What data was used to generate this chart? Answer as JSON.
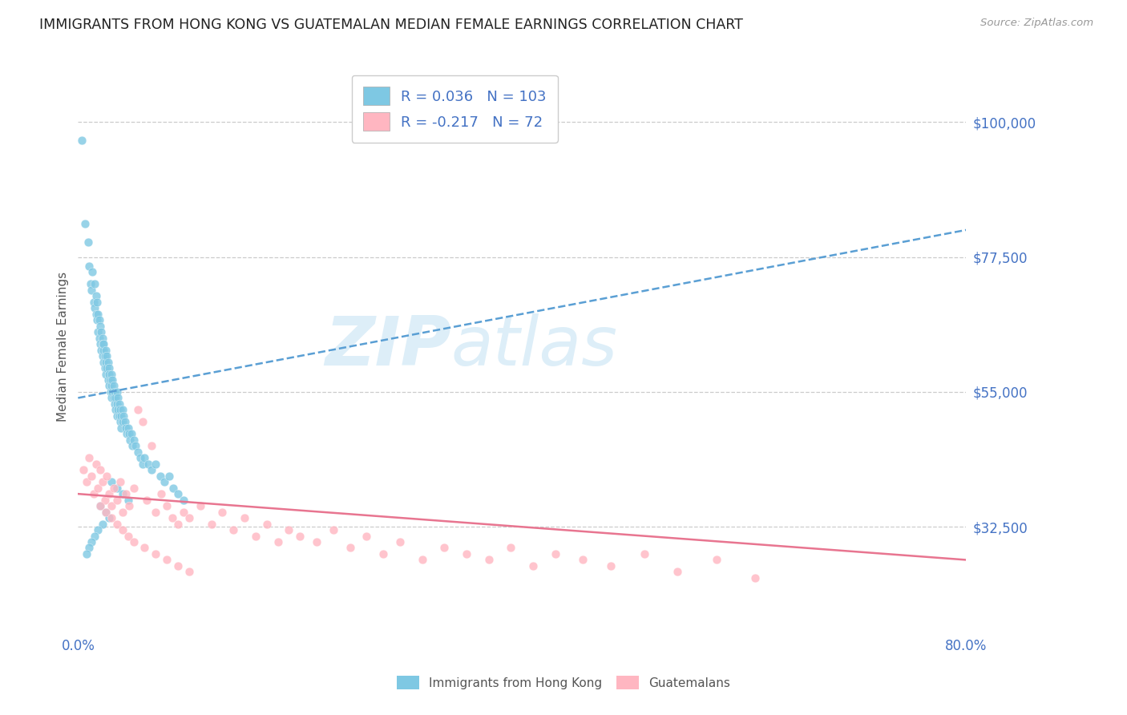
{
  "title": "IMMIGRANTS FROM HONG KONG VS GUATEMALAN MEDIAN FEMALE EARNINGS CORRELATION CHART",
  "source": "Source: ZipAtlas.com",
  "ylabel": "Median Female Earnings",
  "xlim": [
    0.0,
    0.8
  ],
  "ylim": [
    15000,
    110000
  ],
  "yticks": [
    32500,
    55000,
    77500,
    100000
  ],
  "ytick_labels": [
    "$32,500",
    "$55,000",
    "$77,500",
    "$100,000"
  ],
  "xticks": [
    0.0,
    0.1,
    0.2,
    0.3,
    0.4,
    0.5,
    0.6,
    0.7,
    0.8
  ],
  "xtick_labels": [
    "0.0%",
    "",
    "",
    "",
    "",
    "",
    "",
    "",
    "80.0%"
  ],
  "hk_R": 0.036,
  "hk_N": 103,
  "gt_R": -0.217,
  "gt_N": 72,
  "hk_color": "#7ec8e3",
  "gt_color": "#ffb6c1",
  "hk_line_color": "#5a9fd4",
  "gt_line_color": "#e87590",
  "background_color": "#ffffff",
  "watermark_color": "#ddeef8",
  "legend_label_hk": "Immigrants from Hong Kong",
  "legend_label_gt": "Guatemalans",
  "title_color": "#222222",
  "tick_color": "#4472c4",
  "hk_scatter_x": [
    0.003,
    0.006,
    0.009,
    0.01,
    0.011,
    0.012,
    0.013,
    0.014,
    0.015,
    0.015,
    0.016,
    0.016,
    0.017,
    0.017,
    0.018,
    0.018,
    0.019,
    0.019,
    0.02,
    0.02,
    0.021,
    0.021,
    0.022,
    0.022,
    0.022,
    0.023,
    0.023,
    0.023,
    0.024,
    0.024,
    0.025,
    0.025,
    0.025,
    0.026,
    0.026,
    0.027,
    0.027,
    0.028,
    0.028,
    0.028,
    0.029,
    0.029,
    0.03,
    0.03,
    0.03,
    0.031,
    0.031,
    0.032,
    0.032,
    0.033,
    0.033,
    0.034,
    0.034,
    0.035,
    0.035,
    0.035,
    0.036,
    0.036,
    0.037,
    0.037,
    0.038,
    0.038,
    0.039,
    0.039,
    0.04,
    0.04,
    0.041,
    0.042,
    0.043,
    0.044,
    0.045,
    0.046,
    0.047,
    0.048,
    0.049,
    0.05,
    0.052,
    0.054,
    0.056,
    0.058,
    0.06,
    0.063,
    0.066,
    0.07,
    0.074,
    0.078,
    0.082,
    0.086,
    0.09,
    0.095,
    0.03,
    0.035,
    0.04,
    0.045,
    0.02,
    0.025,
    0.028,
    0.022,
    0.018,
    0.015,
    0.012,
    0.01,
    0.008
  ],
  "hk_scatter_y": [
    97000,
    83000,
    80000,
    76000,
    73000,
    72000,
    75000,
    70000,
    73000,
    69000,
    71000,
    68000,
    70000,
    67000,
    68000,
    65000,
    67000,
    64000,
    66000,
    63000,
    65000,
    62000,
    64000,
    61000,
    63000,
    62000,
    60000,
    63000,
    61000,
    59000,
    60000,
    62000,
    58000,
    61000,
    59000,
    60000,
    57000,
    59000,
    58000,
    56000,
    57000,
    55000,
    58000,
    56000,
    54000,
    57000,
    55000,
    56000,
    54000,
    55000,
    53000,
    54000,
    52000,
    55000,
    53000,
    51000,
    54000,
    52000,
    53000,
    51000,
    52000,
    50000,
    51000,
    49000,
    52000,
    50000,
    51000,
    50000,
    49000,
    48000,
    49000,
    48000,
    47000,
    48000,
    46000,
    47000,
    46000,
    45000,
    44000,
    43000,
    44000,
    43000,
    42000,
    43000,
    41000,
    40000,
    41000,
    39000,
    38000,
    37000,
    40000,
    39000,
    38000,
    37000,
    36000,
    35000,
    34000,
    33000,
    32000,
    31000,
    30000,
    29000,
    28000
  ],
  "gt_scatter_x": [
    0.005,
    0.008,
    0.01,
    0.012,
    0.014,
    0.016,
    0.018,
    0.02,
    0.022,
    0.024,
    0.026,
    0.028,
    0.03,
    0.032,
    0.035,
    0.038,
    0.04,
    0.043,
    0.046,
    0.05,
    0.054,
    0.058,
    0.062,
    0.066,
    0.07,
    0.075,
    0.08,
    0.085,
    0.09,
    0.095,
    0.1,
    0.11,
    0.12,
    0.13,
    0.14,
    0.15,
    0.16,
    0.17,
    0.18,
    0.19,
    0.2,
    0.215,
    0.23,
    0.245,
    0.26,
    0.275,
    0.29,
    0.31,
    0.33,
    0.35,
    0.37,
    0.39,
    0.41,
    0.43,
    0.455,
    0.48,
    0.51,
    0.54,
    0.575,
    0.61,
    0.02,
    0.025,
    0.03,
    0.035,
    0.04,
    0.045,
    0.05,
    0.06,
    0.07,
    0.08,
    0.09,
    0.1
  ],
  "gt_scatter_y": [
    42000,
    40000,
    44000,
    41000,
    38000,
    43000,
    39000,
    42000,
    40000,
    37000,
    41000,
    38000,
    36000,
    39000,
    37000,
    40000,
    35000,
    38000,
    36000,
    39000,
    52000,
    50000,
    37000,
    46000,
    35000,
    38000,
    36000,
    34000,
    33000,
    35000,
    34000,
    36000,
    33000,
    35000,
    32000,
    34000,
    31000,
    33000,
    30000,
    32000,
    31000,
    30000,
    32000,
    29000,
    31000,
    28000,
    30000,
    27000,
    29000,
    28000,
    27000,
    29000,
    26000,
    28000,
    27000,
    26000,
    28000,
    25000,
    27000,
    24000,
    36000,
    35000,
    34000,
    33000,
    32000,
    31000,
    30000,
    29000,
    28000,
    27000,
    26000,
    25000
  ]
}
